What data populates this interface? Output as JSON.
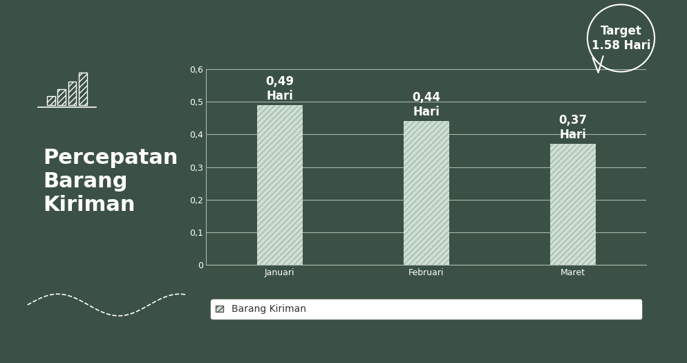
{
  "chart_data": {
    "type": "bar",
    "title": "Percepatan\nBarang\nKiriman",
    "categories": [
      "Januari",
      "Februari",
      "Maret"
    ],
    "series": [
      {
        "name": "Barang Kiriman",
        "color": "#cfdfd3",
        "values": [
          0.49,
          0.44,
          0.37
        ],
        "value_labels": [
          "0,49\nHari",
          "0,44\nHari",
          "0,37\nHari"
        ]
      }
    ],
    "ylim": [
      0,
      0.6
    ],
    "yticks": [
      0,
      {
        "value": 0.1,
        "label": "0,1"
      },
      {
        "value": 0.2,
        "label": "0,2"
      },
      {
        "value": 0.3,
        "label": "0,3"
      },
      {
        "value": 0.4,
        "label": "0,4"
      },
      {
        "value": 0.5,
        "label": "0,5"
      },
      {
        "value": 0.6,
        "label": "0,6"
      }
    ],
    "grid": true,
    "data_labels": true,
    "legend": "lower center",
    "annotations": [
      "Target\n1.58 Hari"
    ]
  }
}
